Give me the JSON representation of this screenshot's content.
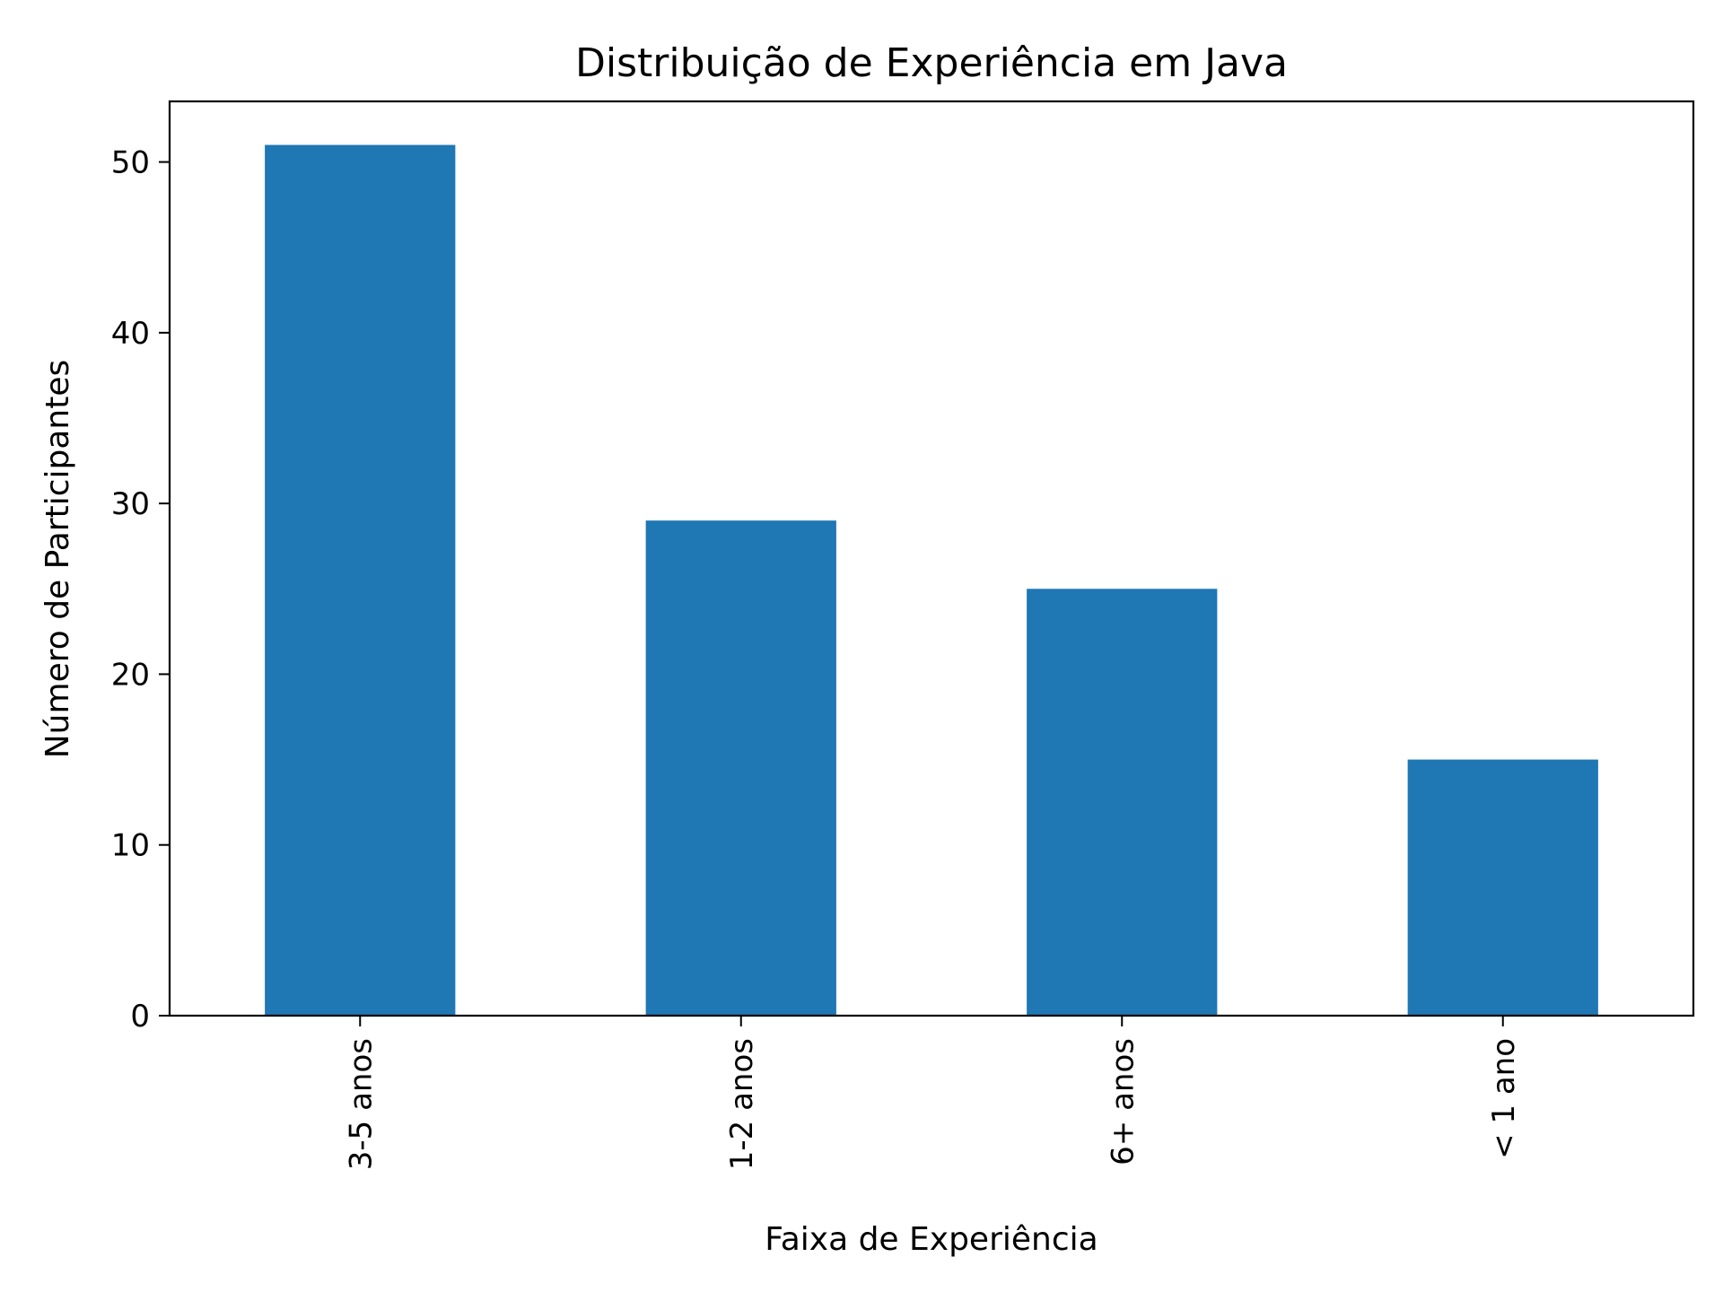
{
  "chart_data": {
    "type": "bar",
    "title": "Distribuição de Experiência em Java",
    "xlabel": "Faixa de Experiência",
    "ylabel": "Número de Participantes",
    "categories": [
      "3-5 anos",
      "1-2 anos",
      "6+ anos",
      "< 1 ano"
    ],
    "values": [
      51,
      29,
      25,
      15
    ],
    "ylim": [
      0,
      53.55
    ],
    "yticks": [
      0,
      10,
      20,
      30,
      40,
      50
    ],
    "bar_color": "#1f77b4",
    "grid": false,
    "legend": "none"
  }
}
